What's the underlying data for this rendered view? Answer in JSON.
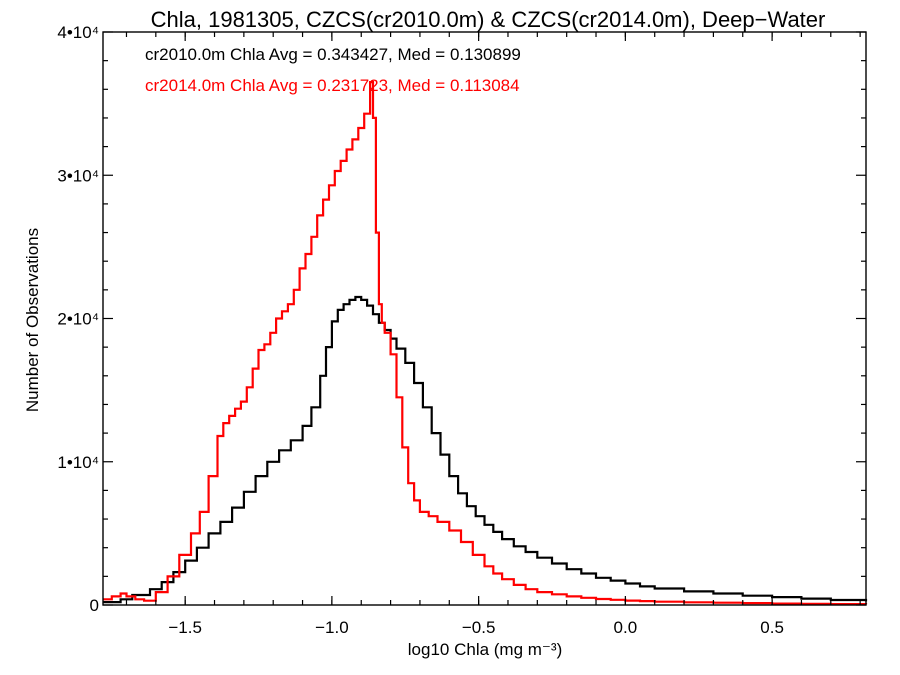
{
  "chart_data": {
    "type": "histogram",
    "title": "Chla, 1981305, CZCS(cr2010.0m) & CZCS(cr2014.0m), Deep−Water",
    "xlabel": "log10 Chla (mg m⁻³)",
    "ylabel": "Number of Observations",
    "xlim": [
      -1.78,
      0.82
    ],
    "ylim": [
      0,
      40000
    ],
    "x_ticks": [
      -1.5,
      -1.0,
      -0.5,
      0.0,
      0.5
    ],
    "x_tick_labels": [
      "−1.5",
      "−1.0",
      "−0.5",
      "0.0",
      "0.5"
    ],
    "y_ticks": [
      0,
      10000,
      20000,
      30000,
      40000
    ],
    "y_tick_labels": [
      "0",
      "1•10⁴",
      "2•10⁴",
      "3•10⁴",
      "4•10⁴"
    ],
    "legend": [
      {
        "text": "cr2010.0m Chla Avg = 0.343427, Med = 0.130899",
        "color": "#000000"
      },
      {
        "text": "cr2014.0m Chla Avg = 0.231723, Med = 0.113084",
        "color": "#ff0000"
      }
    ],
    "series": [
      {
        "color": "#000000",
        "x": [
          -1.78,
          -1.72,
          -1.68,
          -1.62,
          -1.58,
          -1.54,
          -1.5,
          -1.46,
          -1.42,
          -1.38,
          -1.34,
          -1.3,
          -1.26,
          -1.22,
          -1.18,
          -1.14,
          -1.1,
          -1.07,
          -1.04,
          -1.02,
          -1.0,
          -0.98,
          -0.96,
          -0.94,
          -0.92,
          -0.9,
          -0.88,
          -0.86,
          -0.84,
          -0.82,
          -0.8,
          -0.78,
          -0.75,
          -0.72,
          -0.69,
          -0.66,
          -0.63,
          -0.6,
          -0.57,
          -0.54,
          -0.51,
          -0.48,
          -0.45,
          -0.42,
          -0.38,
          -0.34,
          -0.3,
          -0.25,
          -0.2,
          -0.15,
          -0.1,
          -0.05,
          0.0,
          0.05,
          0.1,
          0.2,
          0.3,
          0.4,
          0.5,
          0.6,
          0.7,
          0.82
        ],
        "y": [
          200,
          400,
          700,
          1100,
          1600,
          2300,
          3100,
          4000,
          5000,
          5800,
          6800,
          7900,
          9000,
          10000,
          10800,
          11500,
          12500,
          13800,
          16000,
          18000,
          19800,
          20600,
          21000,
          21300,
          21500,
          21300,
          20900,
          20300,
          19700,
          19200,
          18600,
          17900,
          16900,
          15500,
          13800,
          12000,
          10500,
          9000,
          7800,
          6900,
          6200,
          5600,
          5100,
          4600,
          4100,
          3700,
          3300,
          2900,
          2500,
          2200,
          1900,
          1700,
          1500,
          1300,
          1150,
          950,
          800,
          650,
          550,
          450,
          350,
          250
        ]
      },
      {
        "color": "#ff0000",
        "x": [
          -1.78,
          -1.75,
          -1.72,
          -1.7,
          -1.67,
          -1.64,
          -1.6,
          -1.56,
          -1.52,
          -1.48,
          -1.45,
          -1.42,
          -1.39,
          -1.37,
          -1.35,
          -1.33,
          -1.31,
          -1.29,
          -1.27,
          -1.25,
          -1.23,
          -1.21,
          -1.19,
          -1.17,
          -1.15,
          -1.13,
          -1.11,
          -1.09,
          -1.07,
          -1.05,
          -1.03,
          -1.01,
          -0.99,
          -0.97,
          -0.95,
          -0.93,
          -0.91,
          -0.89,
          -0.87,
          -0.86,
          -0.85,
          -0.84,
          -0.83,
          -0.82,
          -0.8,
          -0.78,
          -0.76,
          -0.74,
          -0.72,
          -0.7,
          -0.67,
          -0.64,
          -0.6,
          -0.56,
          -0.52,
          -0.48,
          -0.45,
          -0.42,
          -0.38,
          -0.34,
          -0.3,
          -0.25,
          -0.2,
          -0.15,
          -0.1,
          -0.05,
          0.0,
          0.05,
          0.1,
          0.2,
          0.3,
          0.4,
          0.5,
          0.6,
          0.7,
          0.82
        ],
        "y": [
          400,
          600,
          800,
          600,
          400,
          300,
          900,
          2000,
          3500,
          5000,
          6500,
          9000,
          11800,
          12700,
          13200,
          13700,
          14200,
          15200,
          16500,
          17800,
          18200,
          19000,
          20000,
          20500,
          21000,
          22000,
          23500,
          24500,
          25700,
          27200,
          28300,
          29300,
          30300,
          31000,
          31800,
          32500,
          33300,
          34300,
          36500,
          34000,
          26000,
          21000,
          19700,
          19000,
          17500,
          14500,
          11000,
          8500,
          7300,
          6500,
          6200,
          5800,
          5200,
          4400,
          3500,
          2700,
          2200,
          1800,
          1400,
          1100,
          900,
          750,
          600,
          500,
          420,
          360,
          310,
          270,
          230,
          190,
          160,
          130,
          100,
          80,
          60,
          40
        ]
      }
    ]
  }
}
